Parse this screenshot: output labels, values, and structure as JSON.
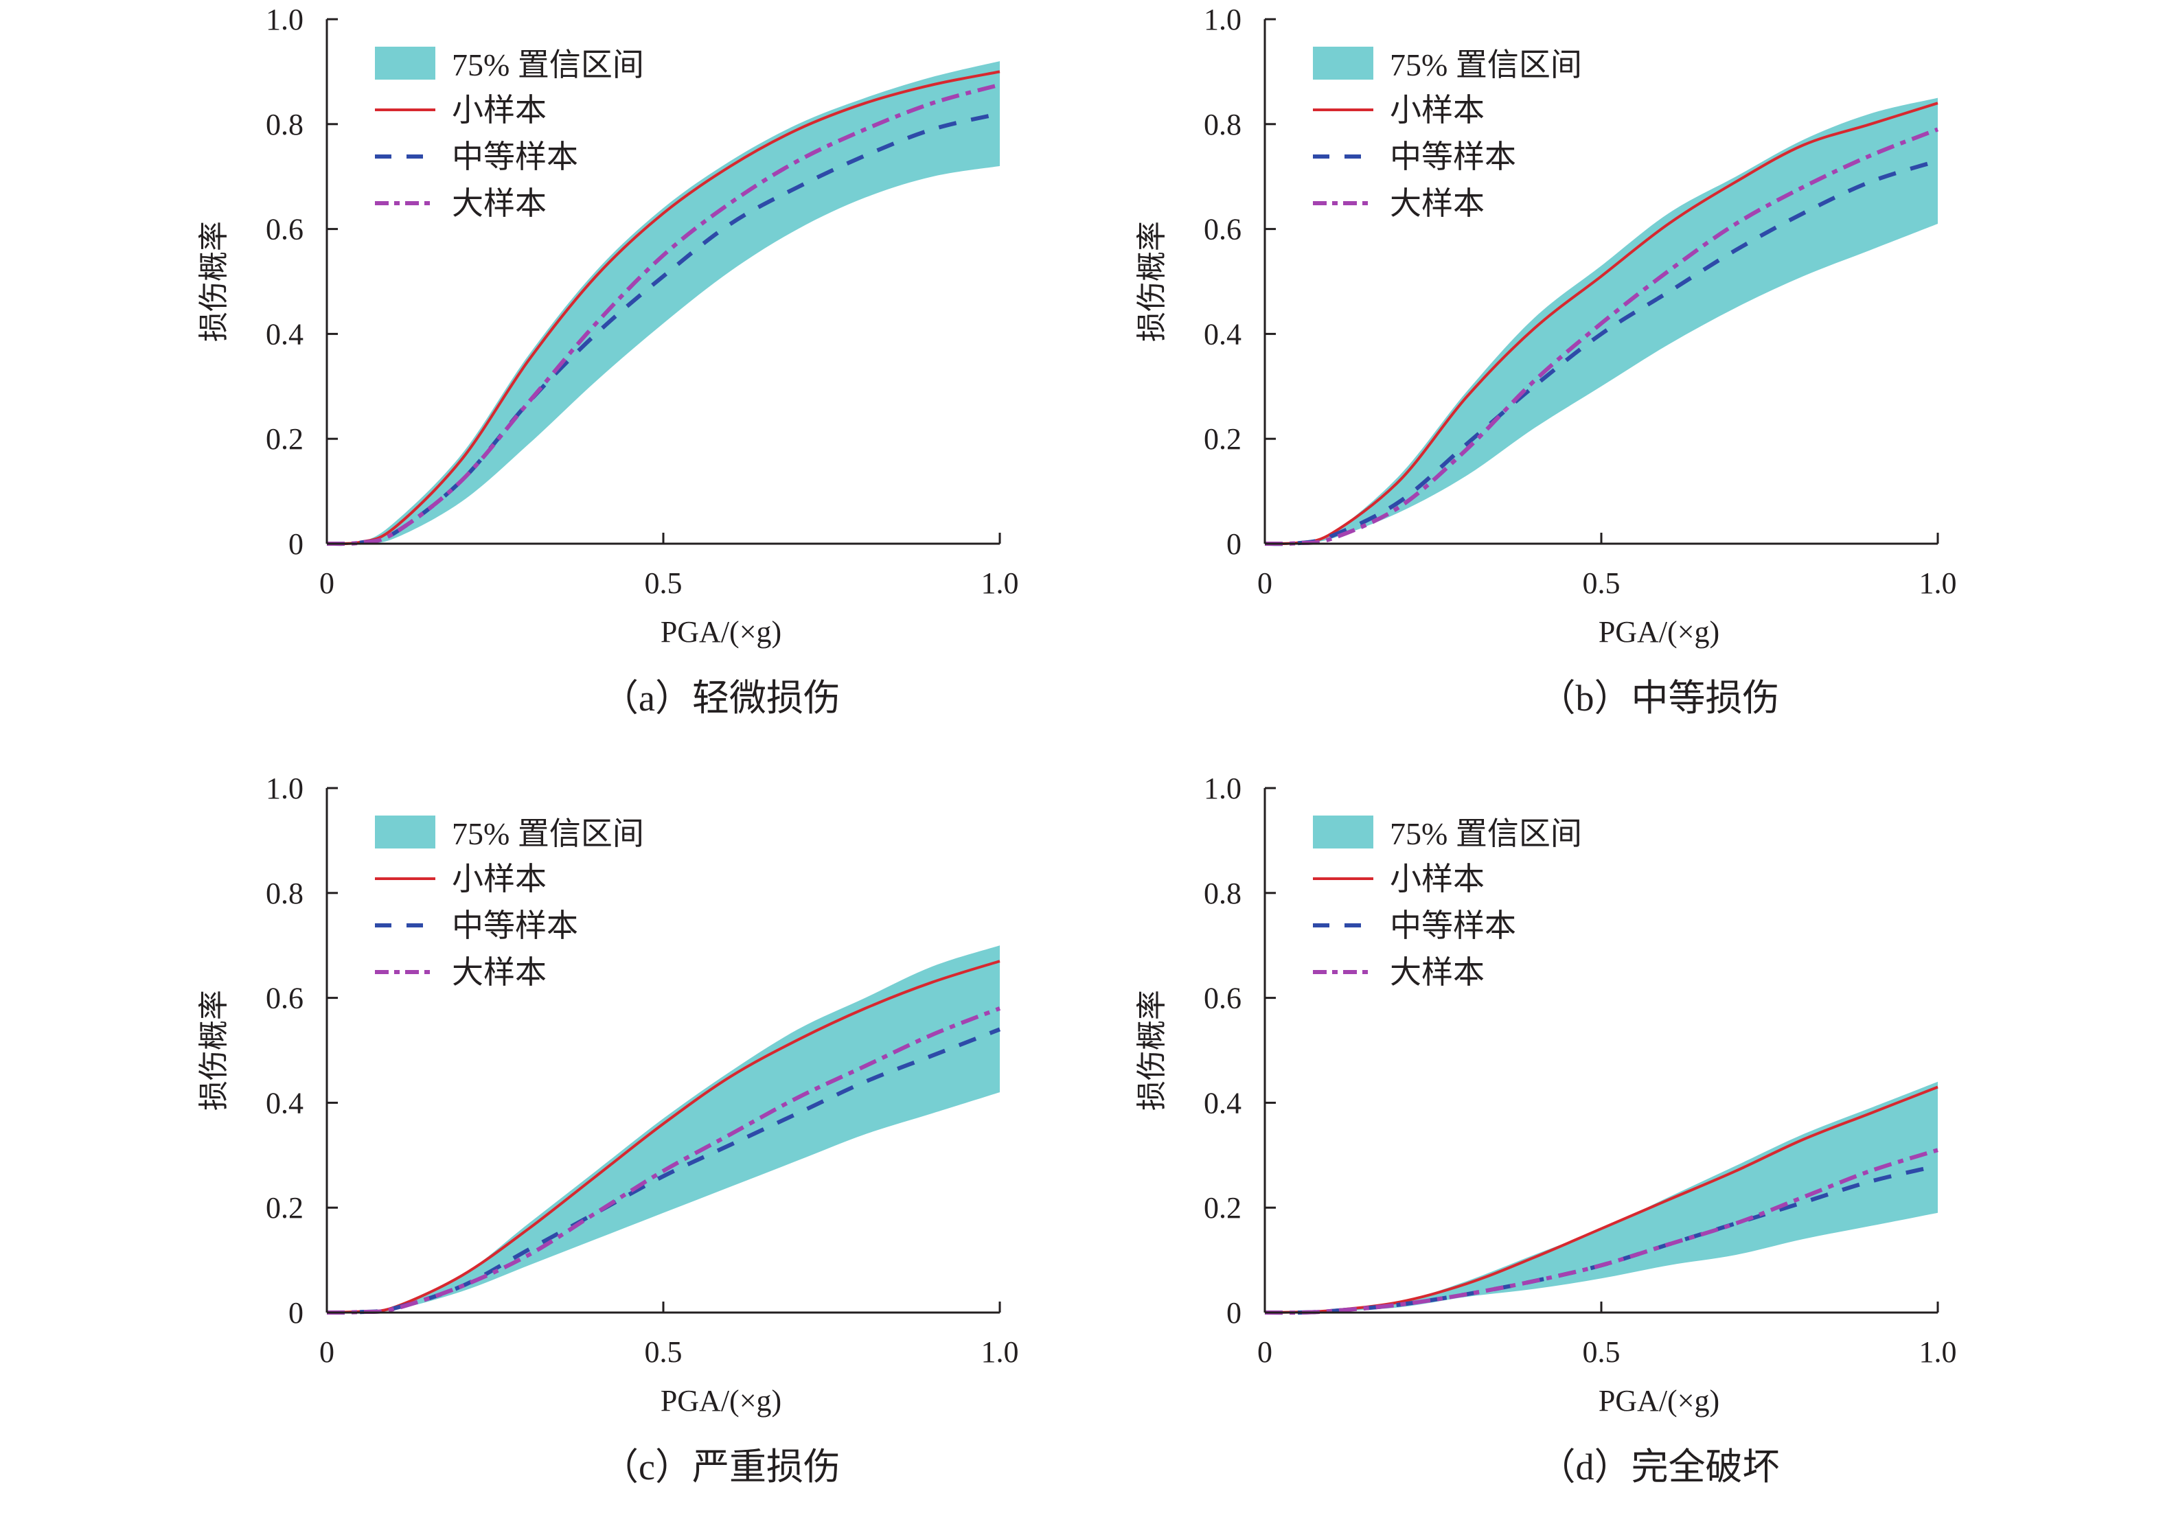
{
  "chart_data": [
    {
      "type": "line",
      "panel": "a",
      "title": "（a）轻微损伤",
      "xlabel": "PGA/(×g)",
      "ylabel": "损伤概率",
      "xlim": [
        0,
        1.0
      ],
      "ylim": [
        0,
        1.0
      ],
      "xticks": [
        "0",
        "0.5",
        "1.0"
      ],
      "xtick_values": [
        0,
        0.5,
        1.0
      ],
      "yticks": [
        "0",
        "0.2",
        "0.4",
        "0.6",
        "0.8",
        "1.0"
      ],
      "ytick_values": [
        0,
        0.2,
        0.4,
        0.6,
        0.8,
        1.0
      ],
      "legend_position": "top-left",
      "x": [
        0,
        0.05,
        0.1,
        0.2,
        0.3,
        0.4,
        0.5,
        0.6,
        0.7,
        0.8,
        0.9,
        1.0
      ],
      "band": {
        "name": "75% 置信区间",
        "upper": [
          0,
          0.003,
          0.04,
          0.17,
          0.36,
          0.52,
          0.64,
          0.73,
          0.8,
          0.85,
          0.89,
          0.92
        ],
        "lower": [
          0,
          0.001,
          0.01,
          0.08,
          0.19,
          0.31,
          0.42,
          0.52,
          0.6,
          0.66,
          0.7,
          0.72
        ]
      },
      "series": [
        {
          "name": "小样本",
          "values": [
            0,
            0.003,
            0.03,
            0.16,
            0.35,
            0.51,
            0.63,
            0.72,
            0.79,
            0.84,
            0.875,
            0.9
          ]
        },
        {
          "name": "中等样本",
          "values": [
            0,
            0.002,
            0.02,
            0.12,
            0.27,
            0.4,
            0.51,
            0.61,
            0.68,
            0.74,
            0.79,
            0.82
          ]
        },
        {
          "name": "大样本",
          "values": [
            0,
            0.002,
            0.02,
            0.12,
            0.27,
            0.42,
            0.55,
            0.65,
            0.73,
            0.79,
            0.84,
            0.875
          ]
        }
      ]
    },
    {
      "type": "line",
      "panel": "b",
      "title": "（b）中等损伤",
      "xlabel": "PGA/(×g)",
      "ylabel": "损伤概率",
      "xlim": [
        0,
        1.0
      ],
      "ylim": [
        0,
        1.0
      ],
      "xticks": [
        "0",
        "0.5",
        "1.0"
      ],
      "xtick_values": [
        0,
        0.5,
        1.0
      ],
      "yticks": [
        "0",
        "0.2",
        "0.4",
        "0.6",
        "0.8",
        "1.0"
      ],
      "ytick_values": [
        0,
        0.2,
        0.4,
        0.6,
        0.8,
        1.0
      ],
      "legend_position": "top-left",
      "x": [
        0,
        0.05,
        0.1,
        0.2,
        0.3,
        0.4,
        0.5,
        0.6,
        0.7,
        0.8,
        0.9,
        1.0
      ],
      "band": {
        "name": "75% 置信区间",
        "upper": [
          0,
          0.002,
          0.02,
          0.13,
          0.29,
          0.43,
          0.53,
          0.63,
          0.7,
          0.77,
          0.82,
          0.85
        ],
        "lower": [
          0,
          0.001,
          0.01,
          0.06,
          0.13,
          0.22,
          0.3,
          0.38,
          0.45,
          0.51,
          0.56,
          0.61
        ]
      },
      "series": [
        {
          "name": "小样本",
          "values": [
            0,
            0.002,
            0.02,
            0.12,
            0.28,
            0.41,
            0.51,
            0.61,
            0.69,
            0.76,
            0.8,
            0.84
          ]
        },
        {
          "name": "中等样本",
          "values": [
            0,
            0.001,
            0.015,
            0.08,
            0.19,
            0.3,
            0.4,
            0.48,
            0.56,
            0.63,
            0.69,
            0.73
          ]
        },
        {
          "name": "大样本",
          "values": [
            0,
            0.001,
            0.01,
            0.07,
            0.18,
            0.31,
            0.42,
            0.52,
            0.61,
            0.68,
            0.74,
            0.79
          ]
        }
      ]
    },
    {
      "type": "line",
      "panel": "c",
      "title": "（c）严重损伤",
      "xlabel": "PGA/(×g)",
      "ylabel": "损伤概率",
      "xlim": [
        0,
        1.0
      ],
      "ylim": [
        0,
        1.0
      ],
      "xticks": [
        "0",
        "0.5",
        "1.0"
      ],
      "xtick_values": [
        0,
        0.5,
        1.0
      ],
      "yticks": [
        "0",
        "0.2",
        "0.4",
        "0.6",
        "0.8",
        "1.0"
      ],
      "ytick_values": [
        0,
        0.2,
        0.4,
        0.6,
        0.8,
        1.0
      ],
      "legend_position": "top-left",
      "x": [
        0,
        0.05,
        0.1,
        0.2,
        0.3,
        0.4,
        0.5,
        0.6,
        0.7,
        0.8,
        0.9,
        1.0
      ],
      "band": {
        "name": "75% 置信区间",
        "upper": [
          0,
          0.002,
          0.01,
          0.07,
          0.17,
          0.27,
          0.37,
          0.46,
          0.54,
          0.6,
          0.66,
          0.7
        ],
        "lower": [
          0,
          0.001,
          0.005,
          0.04,
          0.09,
          0.14,
          0.19,
          0.24,
          0.29,
          0.34,
          0.38,
          0.42
        ]
      },
      "series": [
        {
          "name": "小样本",
          "values": [
            0,
            0.002,
            0.01,
            0.07,
            0.16,
            0.26,
            0.36,
            0.45,
            0.52,
            0.58,
            0.63,
            0.67
          ]
        },
        {
          "name": "中等样本",
          "values": [
            0,
            0.001,
            0.008,
            0.05,
            0.12,
            0.19,
            0.26,
            0.32,
            0.38,
            0.44,
            0.49,
            0.54
          ]
        },
        {
          "name": "大样本",
          "values": [
            0,
            0.001,
            0.007,
            0.05,
            0.11,
            0.19,
            0.27,
            0.34,
            0.41,
            0.47,
            0.53,
            0.58
          ]
        }
      ]
    },
    {
      "type": "line",
      "panel": "d",
      "title": "（d）完全破坏",
      "xlabel": "PGA/(×g)",
      "ylabel": "损伤概率",
      "xlim": [
        0,
        1.0
      ],
      "ylim": [
        0,
        1.0
      ],
      "xticks": [
        "0",
        "0.5",
        "1.0"
      ],
      "xtick_values": [
        0,
        0.5,
        1.0
      ],
      "yticks": [
        "0",
        "0.2",
        "0.4",
        "0.6",
        "0.8",
        "1.0"
      ],
      "ytick_values": [
        0,
        0.2,
        0.4,
        0.6,
        0.8,
        1.0
      ],
      "legend_position": "top-left",
      "x": [
        0,
        0.05,
        0.1,
        0.2,
        0.3,
        0.4,
        0.5,
        0.6,
        0.7,
        0.8,
        0.9,
        1.0
      ],
      "band": {
        "name": "75% 置信区间",
        "upper": [
          0,
          0.001,
          0.004,
          0.02,
          0.06,
          0.11,
          0.16,
          0.22,
          0.28,
          0.34,
          0.39,
          0.44
        ],
        "lower": [
          0,
          0.0,
          0.002,
          0.01,
          0.03,
          0.045,
          0.065,
          0.09,
          0.11,
          0.14,
          0.165,
          0.19
        ]
      },
      "series": [
        {
          "name": "小样本",
          "values": [
            0,
            0.001,
            0.004,
            0.02,
            0.055,
            0.105,
            0.16,
            0.215,
            0.27,
            0.33,
            0.38,
            0.43
          ]
        },
        {
          "name": "中等样本",
          "values": [
            0,
            0.0,
            0.003,
            0.015,
            0.035,
            0.06,
            0.09,
            0.13,
            0.17,
            0.21,
            0.25,
            0.28
          ]
        },
        {
          "name": "大样本",
          "values": [
            0,
            0.0,
            0.003,
            0.015,
            0.035,
            0.06,
            0.09,
            0.13,
            0.17,
            0.22,
            0.27,
            0.31
          ]
        }
      ]
    }
  ],
  "colors": {
    "band": "#77cfd2",
    "small_sample": "#d7282f",
    "medium_sample": "#2e4aa8",
    "large_sample": "#a442b0",
    "axis": "#231f20"
  }
}
